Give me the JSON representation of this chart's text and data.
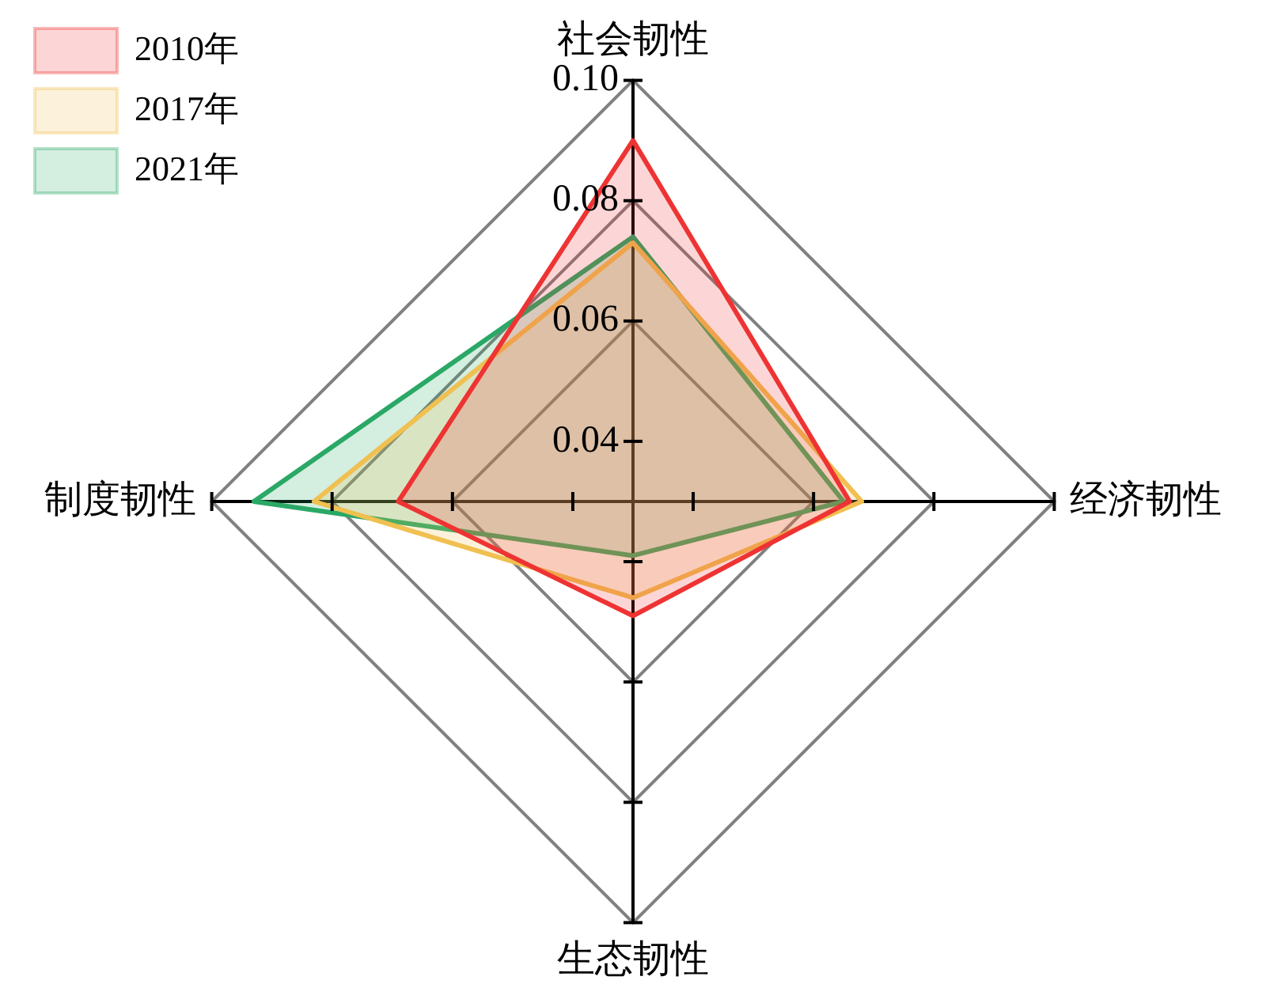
{
  "chart_data": {
    "type": "radar",
    "categories": [
      "社会韧性",
      "经济韧性",
      "生态韧性",
      "制度韧性"
    ],
    "series": [
      {
        "name": "2010年",
        "color": "#ee3333",
        "values": [
          0.09,
          0.066,
          0.049,
          0.069
        ]
      },
      {
        "name": "2017年",
        "color": "#f0c050",
        "values": [
          0.073,
          0.068,
          0.046,
          0.083
        ]
      },
      {
        "name": "2021年",
        "color": "#2aa866",
        "values": [
          0.074,
          0.065,
          0.039,
          0.093
        ]
      }
    ],
    "ylim": [
      0.03,
      0.1
    ],
    "yticks": [
      {
        "value": 0.04,
        "label": "0.04"
      },
      {
        "value": 0.06,
        "label": "0.06"
      },
      {
        "value": 0.08,
        "label": "0.08"
      },
      {
        "value": 0.1,
        "label": "0.10"
      }
    ],
    "grid": true,
    "legend": "top left"
  }
}
